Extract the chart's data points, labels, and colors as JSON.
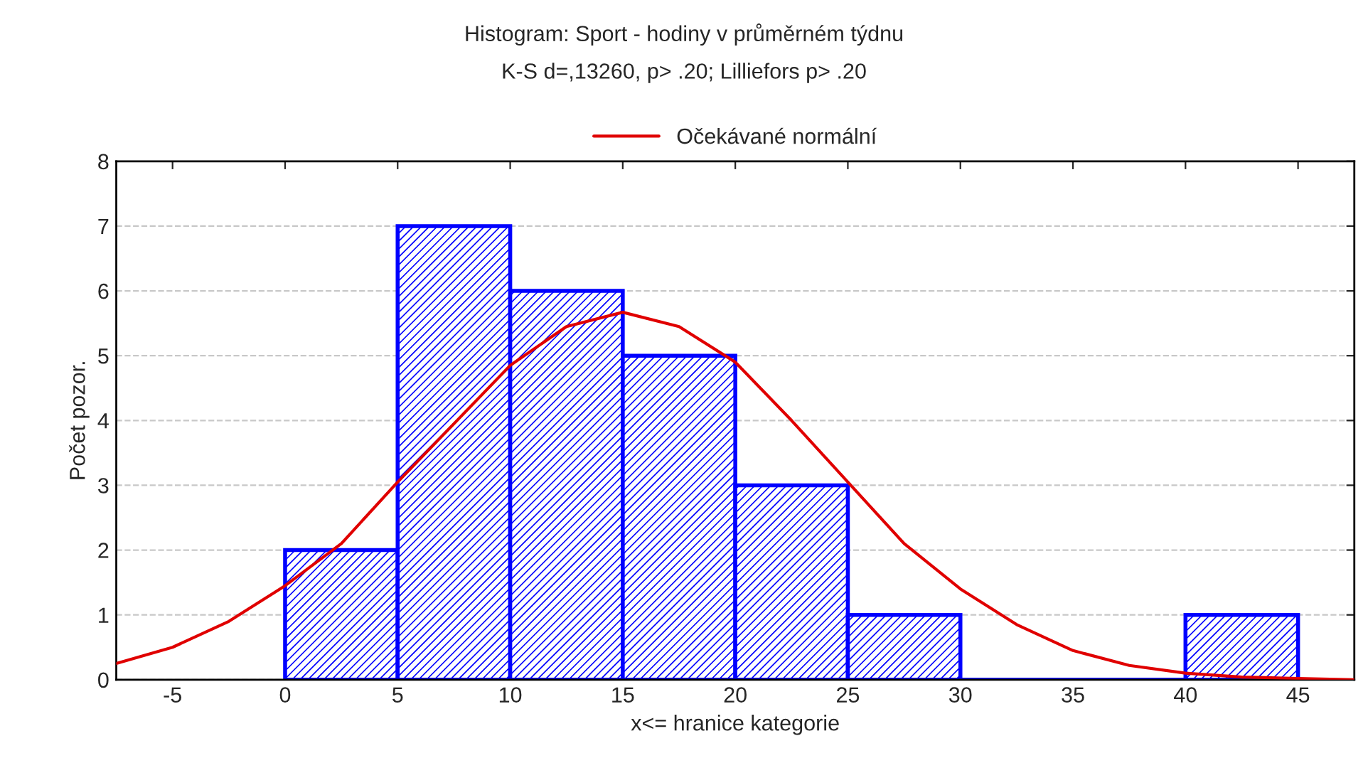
{
  "chart_data": {
    "type": "histogram",
    "title": "Histogram: Sport - hodiny v průměrném týdnu",
    "subtitle": "K-S d=,13260, p> .20; Lilliefors p> .20",
    "xlabel": "x<= hranice kategorie",
    "ylabel": "Počet pozor.",
    "series": [
      {
        "color": "#0000ff",
        "bins": [
          0,
          5,
          10,
          15,
          20,
          25,
          30,
          35,
          40,
          45
        ],
        "values": [
          2,
          7,
          6,
          5,
          3,
          1,
          0,
          0,
          1
        ]
      },
      {
        "type": "line",
        "name": "Očekávané normální",
        "color": "#e00000",
        "x": [
          -7.5,
          -5,
          -2.5,
          0,
          2.5,
          5,
          7.5,
          10,
          12.5,
          15,
          17.5,
          20,
          22.5,
          25,
          27.5,
          30,
          32.5,
          35,
          37.5,
          40,
          42.5,
          45,
          47.5
        ],
        "values": [
          0.25,
          0.5,
          0.9,
          1.45,
          2.1,
          3.05,
          3.95,
          4.85,
          5.45,
          5.67,
          5.45,
          4.9,
          4.0,
          3.05,
          2.1,
          1.4,
          0.85,
          0.45,
          0.22,
          0.1,
          0.04,
          0.02,
          0.0
        ]
      }
    ],
    "xlim": [
      -7.5,
      47.5
    ],
    "ylim": [
      0,
      8
    ],
    "xticks": [
      -5,
      0,
      5,
      10,
      15,
      20,
      25,
      30,
      35,
      40,
      45
    ],
    "yticks": [
      0,
      1,
      2,
      3,
      4,
      5,
      6,
      7,
      8
    ],
    "grid": "y",
    "legend": "top"
  }
}
